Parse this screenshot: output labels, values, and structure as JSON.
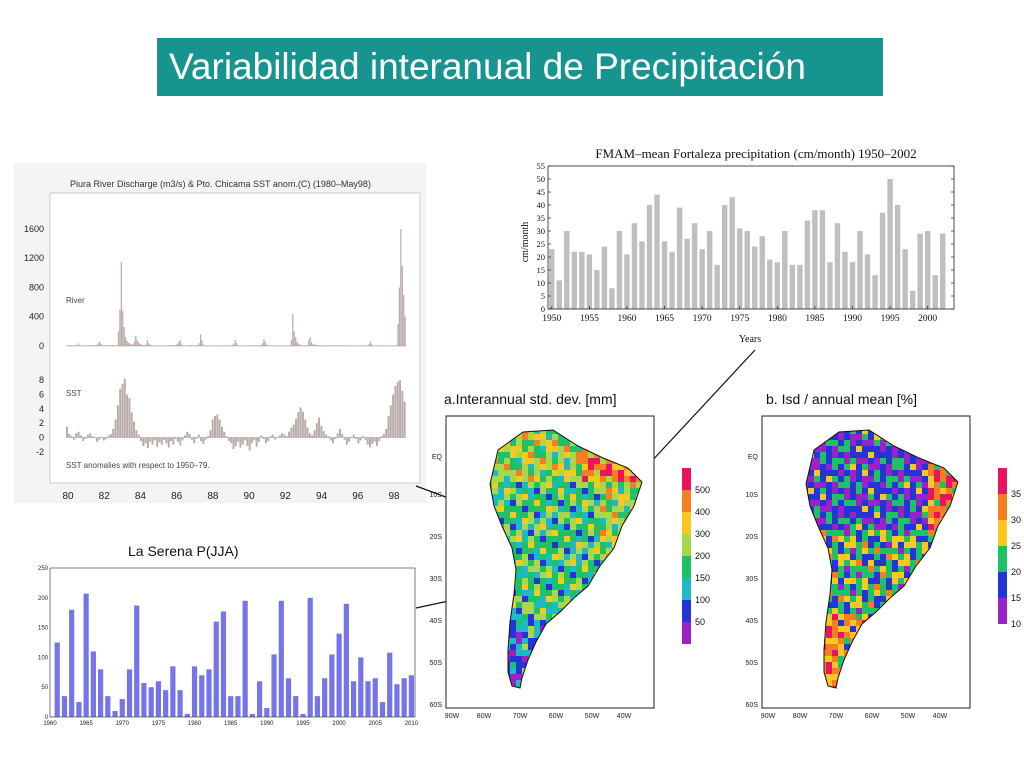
{
  "slide": {
    "title": "Variabilidad interanual de Precipitación",
    "title_bg": "#17948f"
  },
  "chart_data": [
    {
      "id": "piura",
      "type": "bar",
      "title": "Piura River Discharge (m3/s) & Pto. Chicama SST anom.(C) (1980–May98)",
      "bar_color": "#b9aba8",
      "x_ticks": [
        "80",
        "82",
        "84",
        "86",
        "88",
        "90",
        "92",
        "94",
        "96",
        "98"
      ],
      "x_range": [
        1980,
        1998.5
      ],
      "river": {
        "label": "River",
        "yticks": [
          0,
          400,
          800,
          1200,
          1600
        ],
        "ylim": [
          0,
          1750
        ],
        "values": [
          8,
          6,
          10,
          12,
          10,
          8,
          10,
          8,
          35,
          12,
          8,
          8,
          8,
          8,
          9,
          10,
          12,
          10,
          8,
          10,
          14,
          18,
          40,
          60,
          25,
          10,
          8,
          10,
          10,
          8,
          10,
          12,
          12,
          10,
          8,
          10,
          200,
          500,
          1150,
          480,
          260,
          120,
          70,
          40,
          35,
          25,
          20,
          60,
          140,
          80,
          50,
          30,
          20,
          15,
          12,
          20,
          80,
          40,
          20,
          10,
          8,
          8,
          8,
          7,
          8,
          8,
          9,
          10,
          8,
          8,
          8,
          10,
          12,
          9,
          8,
          10,
          20,
          30,
          60,
          80,
          20,
          10,
          8,
          8,
          8,
          10,
          12,
          9,
          8,
          8,
          10,
          14,
          40,
          160,
          80,
          20,
          8,
          8,
          8,
          7,
          8,
          8,
          9,
          8,
          8,
          8,
          8,
          8,
          8,
          8,
          8,
          9,
          10,
          8,
          8,
          10,
          30,
          80,
          40,
          10,
          8,
          8,
          8,
          8,
          8,
          8,
          9,
          10,
          8,
          8,
          8,
          10,
          10,
          9,
          8,
          10,
          40,
          90,
          60,
          20,
          10,
          8,
          8,
          8,
          8,
          8,
          9,
          10,
          8,
          8,
          8,
          8,
          8,
          9,
          8,
          8,
          80,
          440,
          200,
          120,
          60,
          30,
          20,
          12,
          8,
          8,
          9,
          10,
          80,
          120,
          50,
          30,
          20,
          15,
          12,
          10,
          8,
          8,
          9,
          10,
          8,
          8,
          8,
          8,
          12,
          9,
          8,
          8,
          10,
          14,
          8,
          8,
          8,
          8,
          8,
          8,
          8,
          9,
          10,
          8,
          8,
          8,
          8,
          8,
          8,
          9,
          8,
          8,
          8,
          9,
          30,
          60,
          20,
          8,
          8,
          8,
          8,
          8,
          8,
          9,
          10,
          8,
          8,
          8,
          8,
          8,
          8,
          9,
          8,
          8,
          300,
          800,
          1600,
          1100,
          700,
          400
        ]
      },
      "sst": {
        "label": "SST",
        "yticks": [
          -2,
          0,
          2,
          4,
          6,
          8
        ],
        "ylim": [
          -3,
          9
        ],
        "note": "SST anomalies with respect to 1950–79.",
        "values": [
          1.5,
          0.5,
          0.2,
          -0.3,
          0.6,
          0.8,
          0.3,
          -0.5,
          -0.2,
          0.4,
          0.6,
          0.2,
          -0.1,
          -0.6,
          -0.3,
          0.1,
          -0.4,
          -0.2,
          0.3,
          0.5,
          1.2,
          2.5,
          4.5,
          6.8,
          7.5,
          8.2,
          6.0,
          5.5,
          3.5,
          2.2,
          1.0,
          0.4,
          -0.5,
          -1.2,
          -0.8,
          -1.5,
          -0.6,
          -1.0,
          -0.4,
          -1.3,
          -0.7,
          -1.0,
          -0.3,
          -0.8,
          -1.4,
          -0.5,
          -1.0,
          -0.2,
          -0.6,
          -1.1,
          -0.4,
          0.3,
          0.8,
          0.5,
          -0.3,
          -0.8,
          -0.2,
          0.4,
          -0.5,
          -0.9,
          -0.3,
          0.2,
          1.0,
          2.5,
          3.0,
          3.2,
          2.5,
          1.5,
          0.8,
          0.2,
          -0.5,
          -0.8,
          -1.6,
          -1.2,
          -0.6,
          -1.4,
          -1.0,
          -0.4,
          -1.2,
          -1.8,
          -0.8,
          -0.4,
          -1.3,
          -0.6,
          0.3,
          -0.2,
          -0.8,
          -0.5,
          0.2,
          0.4,
          -0.3,
          0.1,
          0.3,
          0.6,
          0.4,
          0.2,
          0.8,
          1.4,
          1.8,
          2.6,
          3.5,
          4.2,
          3.6,
          2.5,
          1.4,
          0.6,
          0.3,
          1.0,
          2.0,
          2.8,
          1.6,
          0.9,
          0.4,
          0.2,
          -0.4,
          -0.8,
          -0.2,
          0.6,
          1.2,
          0.5,
          -0.3,
          -1.0,
          -0.6,
          0.1,
          0.4,
          -0.2,
          -0.8,
          -0.4,
          0.2,
          -0.3,
          -1.0,
          -1.4,
          -0.9,
          -0.6,
          -1.2,
          -0.5,
          0.2,
          0.5,
          1.2,
          3.0,
          4.5,
          6.0,
          7.2,
          7.8,
          8.0,
          6.5,
          5.0
        ]
      }
    },
    {
      "id": "fortaleza",
      "type": "bar",
      "title": "FMAM–mean Fortaleza precipitation (cm/month) 1950–2002",
      "xlabel": "Years",
      "ylabel": "cm/month",
      "bar_color": "#bfbfbf",
      "ylim": [
        0,
        55
      ],
      "yticks": [
        0,
        5,
        10,
        15,
        20,
        25,
        30,
        35,
        40,
        45,
        50,
        55
      ],
      "x_ticks": [
        "1950",
        "1955",
        "1960",
        "1965",
        "1970",
        "1975",
        "1980",
        "1985",
        "1990",
        "1995",
        "2000"
      ],
      "x": [
        1950,
        1951,
        1952,
        1953,
        1954,
        1955,
        1956,
        1957,
        1958,
        1959,
        1960,
        1961,
        1962,
        1963,
        1964,
        1965,
        1966,
        1967,
        1968,
        1969,
        1970,
        1971,
        1972,
        1973,
        1974,
        1975,
        1976,
        1977,
        1978,
        1979,
        1980,
        1981,
        1982,
        1983,
        1984,
        1985,
        1986,
        1987,
        1988,
        1989,
        1990,
        1991,
        1992,
        1993,
        1994,
        1995,
        1996,
        1997,
        1998,
        1999,
        2000,
        2001,
        2002
      ],
      "values": [
        23,
        11,
        30,
        22,
        22,
        21,
        15,
        24,
        8,
        30,
        21,
        33,
        26,
        40,
        44,
        26,
        22,
        39,
        27,
        33,
        23,
        30,
        17,
        40,
        43,
        31,
        30,
        24,
        28,
        19,
        18,
        30,
        17,
        17,
        34,
        38,
        38,
        18,
        33,
        22,
        18,
        30,
        21,
        13,
        37,
        50,
        40,
        23,
        7,
        29,
        30,
        13,
        29
      ]
    },
    {
      "id": "serena",
      "type": "bar",
      "title": "La Serena P(JJA)",
      "bar_color": "#7575ea",
      "ylim": [
        0,
        250
      ],
      "yticks": [
        0,
        50,
        100,
        150,
        200,
        250
      ],
      "x_ticks": [
        "1960",
        "1965",
        "1970",
        "1975",
        "1980",
        "1985",
        "1990",
        "1995",
        "2000",
        "2005",
        "2010"
      ],
      "x": [
        1961,
        1962,
        1963,
        1964,
        1965,
        1966,
        1967,
        1968,
        1969,
        1970,
        1971,
        1972,
        1973,
        1974,
        1975,
        1976,
        1977,
        1978,
        1979,
        1980,
        1981,
        1982,
        1983,
        1984,
        1985,
        1986,
        1987,
        1988,
        1989,
        1990,
        1991,
        1992,
        1993,
        1994,
        1995,
        1996,
        1997,
        1998,
        1999,
        2000,
        2001,
        2002,
        2003,
        2004,
        2005,
        2006,
        2007,
        2008,
        2009,
        2010
      ],
      "values": [
        125,
        35,
        180,
        25,
        207,
        110,
        80,
        35,
        10,
        30,
        80,
        187,
        57,
        50,
        60,
        45,
        85,
        45,
        5,
        85,
        70,
        80,
        160,
        177,
        35,
        35,
        195,
        5,
        60,
        15,
        105,
        195,
        65,
        35,
        5,
        200,
        35,
        65,
        105,
        140,
        190,
        60,
        100,
        60,
        65,
        25,
        108,
        55,
        65,
        70
      ]
    }
  ],
  "maps": {
    "a": {
      "title": "a.Interannual std. dev. [mm]",
      "lat_labels": [
        "EQ",
        "10S",
        "20S",
        "30S",
        "40S",
        "50S",
        "60S"
      ],
      "lon_labels": [
        "90W",
        "80W",
        "70W",
        "60W",
        "50W",
        "40W"
      ],
      "legend": [
        {
          "label": "500",
          "color": "#e8155e"
        },
        {
          "label": "400",
          "color": "#f57f20"
        },
        {
          "label": "300",
          "color": "#f7c81e"
        },
        {
          "label": "200",
          "color": "#a8d84a"
        },
        {
          "label": "150",
          "color": "#1fc166"
        },
        {
          "label": "100",
          "color": "#1db9c6"
        },
        {
          "label": "50",
          "color": "#2434d6"
        },
        {
          "label": "",
          "color": "#9a23c8"
        }
      ]
    },
    "b": {
      "title": "b. Isd / annual mean [%]",
      "lat_labels": [
        "EQ",
        "10S",
        "20S",
        "30S",
        "40S",
        "50S",
        "60S"
      ],
      "lon_labels": [
        "90W",
        "80W",
        "70W",
        "60W",
        "50W",
        "40W"
      ],
      "legend": [
        {
          "label": "35",
          "color": "#e8155e"
        },
        {
          "label": "30",
          "color": "#f57f20"
        },
        {
          "label": "25",
          "color": "#f7c81e"
        },
        {
          "label": "20",
          "color": "#1fc166"
        },
        {
          "label": "15",
          "color": "#2434d6"
        },
        {
          "label": "10",
          "color": "#9a23c8"
        }
      ]
    }
  }
}
